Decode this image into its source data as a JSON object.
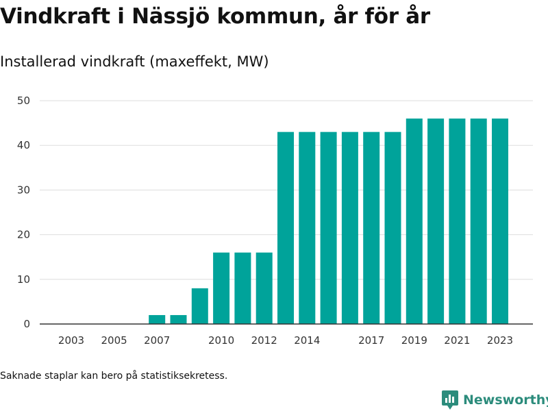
{
  "header": {
    "title": "Vindkraft i Nässjö kommun, år för år",
    "subtitle": "Installerad vindkraft (maxeffekt, MW)"
  },
  "footer": {
    "note": "Saknade staplar kan bero på statistiksekretess.",
    "brand": "Newsworthy"
  },
  "colors": {
    "bar": "#00A39A",
    "brand": "#2C8C7C",
    "grid": "#DDDDDD",
    "axis": "#333333"
  },
  "chart_data": {
    "type": "bar",
    "categories": [
      2003,
      2004,
      2005,
      2006,
      2007,
      2008,
      2009,
      2010,
      2011,
      2012,
      2013,
      2014,
      2015,
      2016,
      2017,
      2018,
      2019,
      2020,
      2021,
      2022,
      2023
    ],
    "values": [
      0,
      0,
      0,
      0,
      2,
      2,
      8,
      16,
      16,
      16,
      43,
      43,
      43,
      43,
      43,
      43,
      46,
      46,
      46,
      46,
      46
    ],
    "x_tick_labels": [
      "2003",
      "2005",
      "2007",
      "2010",
      "2012",
      "2014",
      "2017",
      "2019",
      "2021",
      "2023"
    ],
    "y_ticks": [
      0,
      10,
      20,
      30,
      40,
      50
    ],
    "ylim": [
      0,
      50
    ],
    "grid": true
  }
}
